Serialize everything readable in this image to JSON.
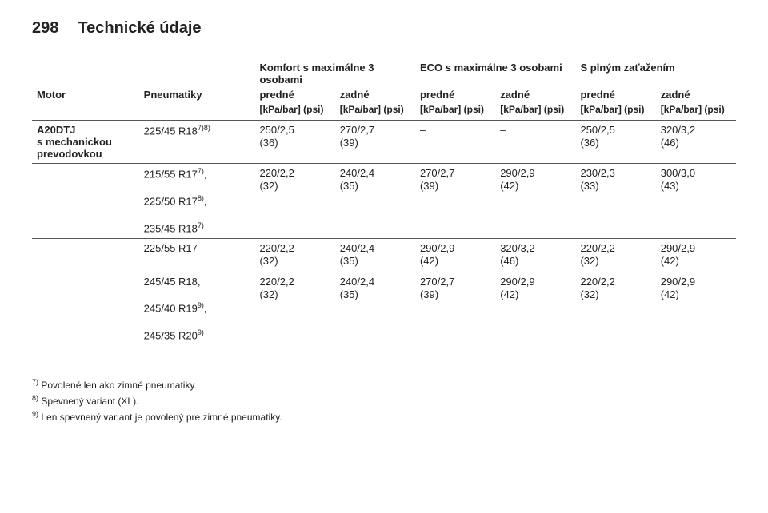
{
  "header": {
    "page": "298",
    "chapter": "Technické údaje"
  },
  "columns": {
    "group1": "Komfort s maximálne 3 osobami",
    "group2": "ECO s maximálne 3 osobami",
    "group3": "S plným zaťažením",
    "engine": "Motor",
    "tyres": "Pneumatiky",
    "front": "predné",
    "rear": "zadné",
    "unit": "[kPa/bar] (psi)"
  },
  "rows": [
    {
      "engine_l1": "A20DTJ",
      "engine_l2": "s mechanickou",
      "engine_l3": "prevodovkou",
      "tyre_lines": [
        "225/45 R18<sup>7)8)</sup>"
      ],
      "c": [
        "250/2,5",
        "(36)",
        "270/2,7",
        "(39)",
        "–",
        "",
        "–",
        "",
        "250/2,5",
        "(36)",
        "320/3,2",
        "(46)"
      ]
    },
    {
      "tyre_lines": [
        "215/55 R17<sup>7)</sup>,",
        "",
        "225/50 R17<sup>8)</sup>,",
        "",
        "235/45 R18<sup>7)</sup>"
      ],
      "c": [
        "220/2,2",
        "(32)",
        "240/2,4",
        "(35)",
        "270/2,7",
        "(39)",
        "290/2,9",
        "(42)",
        "230/2,3",
        "(33)",
        "300/3,0",
        "(43)"
      ]
    },
    {
      "tyre_lines": [
        "225/55 R17"
      ],
      "c": [
        "220/2,2",
        "(32)",
        "240/2,4",
        "(35)",
        "290/2,9",
        "(42)",
        "320/3,2",
        "(46)",
        "220/2,2",
        "(32)",
        "290/2,9",
        "(42)"
      ]
    },
    {
      "tyre_lines": [
        "245/45 R18,",
        "",
        "245/40 R19<sup>9)</sup>,",
        "",
        "245/35 R20<sup>9)</sup>"
      ],
      "c": [
        "220/2,2",
        "(32)",
        "240/2,4",
        "(35)",
        "270/2,7",
        "(39)",
        "290/2,9",
        "(42)",
        "220/2,2",
        "(32)",
        "290/2,9",
        "(42)"
      ]
    }
  ],
  "footnotes": {
    "f7": "Povolené len ako zimné pneumatiky.",
    "f8": "Spevnený variant (XL).",
    "f9": "Len spevnený variant je povolený pre zimné pneumatiky."
  }
}
